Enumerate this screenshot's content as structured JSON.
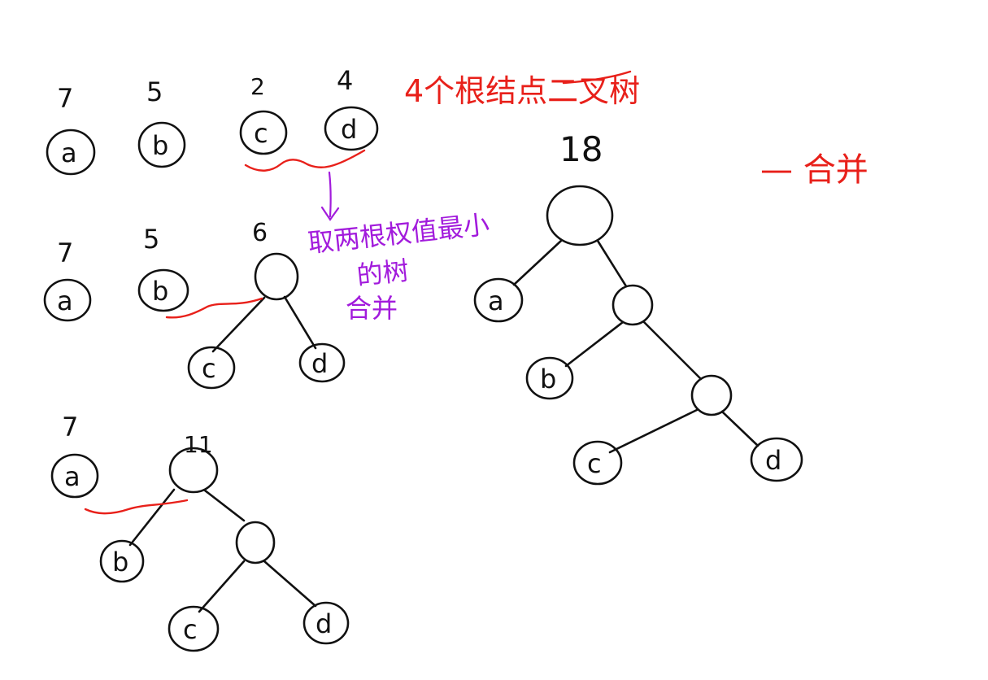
{
  "colors": {
    "ink": "#111111",
    "red_note": "#e8201a",
    "purple_note": "#a21bdc"
  },
  "stage1": {
    "weights": [
      "7",
      "5",
      "2",
      "4"
    ],
    "nodes": [
      "a",
      "b",
      "c",
      "d"
    ]
  },
  "stage2": {
    "weights": [
      "7",
      "5",
      "6"
    ],
    "nodes": [
      "a",
      "b",
      "c",
      "d"
    ]
  },
  "stage3": {
    "weights": [
      "7",
      "11"
    ],
    "nodes": [
      "a",
      "b",
      "c",
      "d"
    ]
  },
  "final": {
    "weight": "18",
    "nodes": [
      "a",
      "b",
      "c",
      "d"
    ]
  },
  "notes": {
    "title_red": "4个根结点二叉树",
    "purple_line1": "取两根权值最小",
    "purple_line2": "的树",
    "purple_line3": "合并",
    "red_right": "— 合并"
  }
}
